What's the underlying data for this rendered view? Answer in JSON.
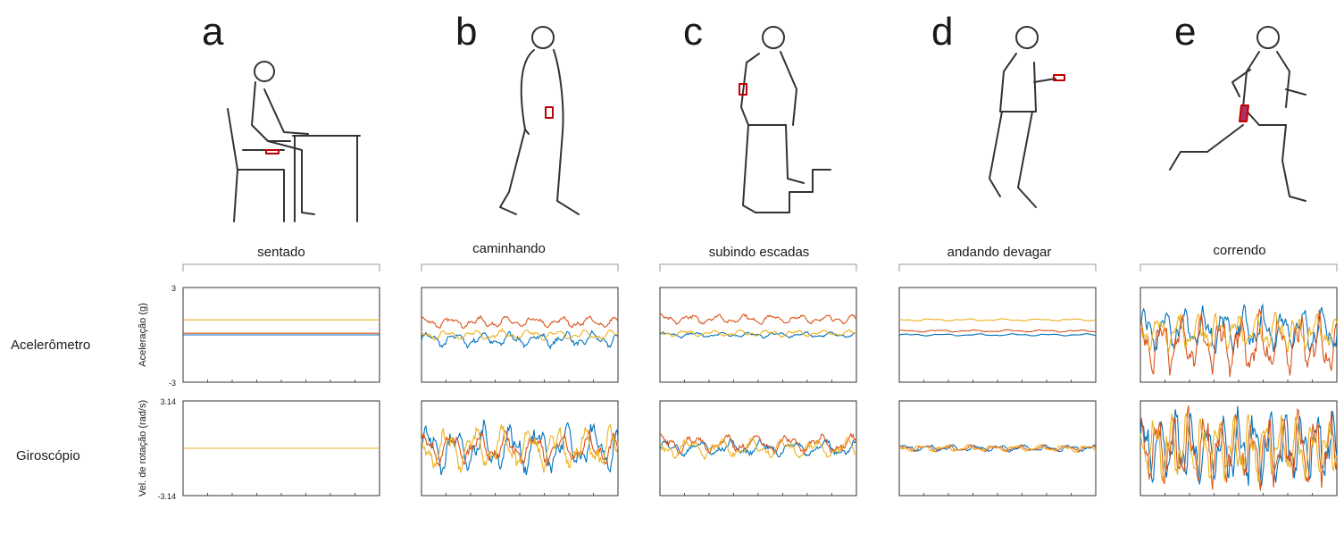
{
  "row_labels": {
    "accelerometer": "Acelerômetro",
    "gyroscope": "Giroscópio"
  },
  "panels": [
    {
      "letter": "a",
      "activity": "sentado"
    },
    {
      "letter": "b",
      "activity": "caminhando"
    },
    {
      "letter": "c",
      "activity": "subindo escadas"
    },
    {
      "letter": "d",
      "activity": "andando devagar"
    },
    {
      "letter": "e",
      "activity": "correndo"
    }
  ],
  "colors": {
    "x": "#0072BD",
    "y": "#D95319",
    "z": "#EDB120",
    "frame": "#333333",
    "bracket": "#999999",
    "phone": "#C00000"
  },
  "chart_data": [
    {
      "type": "line",
      "row": "accelerometer",
      "ylabel": "Aceleração  (g)",
      "ylim": [
        -3,
        3
      ],
      "ytick_labels": [
        "3",
        "-3"
      ],
      "panels": [
        {
          "activity": "sentado",
          "series": [
            {
              "color": "#0072BD",
              "mean": 0.0,
              "amp": 0.0,
              "period": 0
            },
            {
              "color": "#D95319",
              "mean": 0.1,
              "amp": 0.0,
              "period": 0
            },
            {
              "color": "#EDB120",
              "mean": 0.95,
              "amp": 0.0,
              "period": 0
            }
          ]
        },
        {
          "activity": "caminhando",
          "series": [
            {
              "color": "#0072BD",
              "mean": -0.3,
              "amp": 0.55,
              "period": 7
            },
            {
              "color": "#D95319",
              "mean": 0.8,
              "amp": 0.4,
              "period": 7
            },
            {
              "color": "#EDB120",
              "mean": 0.0,
              "amp": 0.35,
              "period": 7
            }
          ]
        },
        {
          "activity": "subindo escadas",
          "series": [
            {
              "color": "#0072BD",
              "mean": 0.0,
              "amp": 0.2,
              "period": 7
            },
            {
              "color": "#D95319",
              "mean": 1.0,
              "amp": 0.35,
              "period": 7
            },
            {
              "color": "#EDB120",
              "mean": 0.1,
              "amp": 0.25,
              "period": 7
            }
          ]
        },
        {
          "activity": "andando devagar",
          "series": [
            {
              "color": "#0072BD",
              "mean": 0.0,
              "amp": 0.08,
              "period": 9
            },
            {
              "color": "#D95319",
              "mean": 0.25,
              "amp": 0.08,
              "period": 9
            },
            {
              "color": "#EDB120",
              "mean": 0.95,
              "amp": 0.08,
              "period": 9
            }
          ]
        },
        {
          "activity": "correndo",
          "series": [
            {
              "color": "#0072BD",
              "mean": 0.3,
              "amp": 1.6,
              "period": 5
            },
            {
              "color": "#D95319",
              "mean": -0.6,
              "amp": 2.2,
              "period": 5
            },
            {
              "color": "#EDB120",
              "mean": 0.2,
              "amp": 1.3,
              "period": 5
            }
          ]
        }
      ]
    },
    {
      "type": "line",
      "row": "gyroscope",
      "ylabel": "Vel. de rotação  (rad/s)",
      "ylim": [
        -3.14,
        3.14
      ],
      "ytick_labels": [
        "3.14",
        "-3.14"
      ],
      "panels": [
        {
          "activity": "sentado",
          "series": [
            {
              "color": "#0072BD",
              "mean": 0.0,
              "amp": 0.0,
              "period": 0
            },
            {
              "color": "#D95319",
              "mean": 0.0,
              "amp": 0.0,
              "period": 0
            },
            {
              "color": "#EDB120",
              "mean": 0.0,
              "amp": 0.0,
              "period": 0
            }
          ]
        },
        {
          "activity": "caminhando",
          "series": [
            {
              "color": "#0072BD",
              "mean": 0.0,
              "amp": 1.8,
              "period": 7
            },
            {
              "color": "#D95319",
              "mean": 0.0,
              "amp": 1.2,
              "period": 7
            },
            {
              "color": "#EDB120",
              "mean": 0.0,
              "amp": 1.6,
              "period": 7
            }
          ]
        },
        {
          "activity": "subindo escadas",
          "series": [
            {
              "color": "#0072BD",
              "mean": 0.0,
              "amp": 0.6,
              "period": 8
            },
            {
              "color": "#D95319",
              "mean": 0.3,
              "amp": 0.7,
              "period": 8
            },
            {
              "color": "#EDB120",
              "mean": 0.0,
              "amp": 0.7,
              "period": 8
            }
          ]
        },
        {
          "activity": "andando devagar",
          "series": [
            {
              "color": "#0072BD",
              "mean": 0.0,
              "amp": 0.25,
              "period": 6
            },
            {
              "color": "#D95319",
              "mean": 0.0,
              "amp": 0.25,
              "period": 6
            },
            {
              "color": "#EDB120",
              "mean": 0.0,
              "amp": 0.25,
              "period": 6
            }
          ]
        },
        {
          "activity": "correndo",
          "series": [
            {
              "color": "#0072BD",
              "mean": 0.0,
              "amp": 2.8,
              "period": 4
            },
            {
              "color": "#D95319",
              "mean": 0.0,
              "amp": 2.8,
              "period": 4
            },
            {
              "color": "#EDB120",
              "mean": 0.0,
              "amp": 2.5,
              "period": 4
            }
          ]
        }
      ]
    }
  ]
}
